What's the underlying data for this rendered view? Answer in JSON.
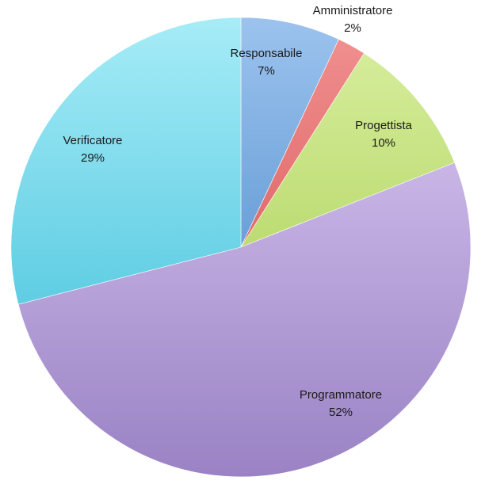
{
  "chart_data": {
    "type": "pie",
    "title": "",
    "start_angle_deg": 0,
    "direction": "clockwise",
    "slices": [
      {
        "label": "Responsabile",
        "value": 7,
        "value_label": "7%",
        "color": "#9cc3ee",
        "color_dark": "#6a9fd8"
      },
      {
        "label": "Amministratore",
        "value": 2,
        "value_label": "2%",
        "color": "#f08e8e",
        "color_dark": "#e06a6a"
      },
      {
        "label": "Progettista",
        "value": 10,
        "value_label": "10%",
        "color": "#d5ec9a",
        "color_dark": "#bcdc72"
      },
      {
        "label": "Programmatore",
        "value": 52,
        "value_label": "52%",
        "color": "#c9b6e6",
        "color_dark": "#9a82c4"
      },
      {
        "label": "Verificatore",
        "value": 29,
        "value_label": "29%",
        "color": "#a6ecf7",
        "color_dark": "#5fcde3"
      }
    ]
  }
}
